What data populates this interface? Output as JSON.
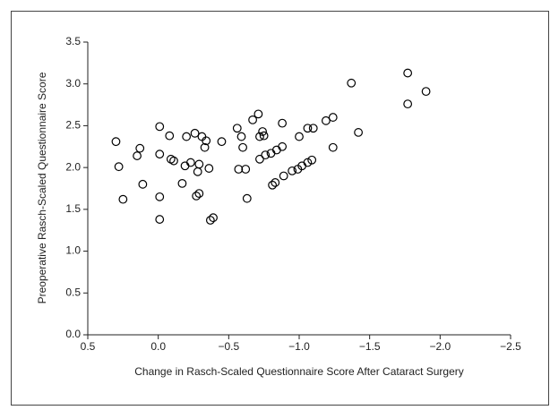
{
  "chart_data": {
    "type": "scatter",
    "xlabel": "Change in Rasch-Scaled Questionnaire Score After Cataract Surgery",
    "ylabel": "Preoperative Rasch-Scaled Questionnaire Score",
    "x": [
      0.3,
      0.28,
      0.25,
      0.13,
      0.15,
      0.11,
      -0.01,
      -0.01,
      -0.01,
      -0.01,
      -0.08,
      -0.09,
      -0.11,
      -0.17,
      -0.2,
      -0.19,
      -0.23,
      -0.26,
      -0.29,
      -0.28,
      -0.29,
      -0.27,
      -0.31,
      -0.33,
      -0.34,
      -0.36,
      -0.37,
      -0.39,
      -0.45,
      -0.56,
      -0.59,
      -0.6,
      -0.57,
      -0.62,
      -0.63,
      -0.67,
      -0.71,
      -0.72,
      -0.74,
      -0.75,
      -0.72,
      -0.76,
      -0.8,
      -0.84,
      -0.88,
      -0.88,
      -0.81,
      -0.83,
      -0.89,
      -0.95,
      -0.99,
      -1.02,
      -1.06,
      -1.09,
      -1.0,
      -1.06,
      -1.1,
      -1.19,
      -1.24,
      -1.24,
      -1.37,
      -1.42,
      -1.77,
      -1.77,
      -1.9
    ],
    "y": [
      2.31,
      2.01,
      1.62,
      2.23,
      2.14,
      1.8,
      2.49,
      2.16,
      1.65,
      1.38,
      2.38,
      2.1,
      2.08,
      1.81,
      2.37,
      2.02,
      2.06,
      2.41,
      2.04,
      1.95,
      1.69,
      1.66,
      2.37,
      2.24,
      2.32,
      1.99,
      1.37,
      1.4,
      2.31,
      2.47,
      2.37,
      2.24,
      1.98,
      1.98,
      1.63,
      2.57,
      2.64,
      2.37,
      2.43,
      2.38,
      2.1,
      2.15,
      2.17,
      2.21,
      2.25,
      2.53,
      1.79,
      1.82,
      1.9,
      1.96,
      1.98,
      2.02,
      2.06,
      2.09,
      2.37,
      2.47,
      2.47,
      2.56,
      2.6,
      2.24,
      3.01,
      2.42,
      3.13,
      2.76,
      2.91
    ],
    "color": "#000000",
    "xlim": [
      0.5,
      -2.5
    ],
    "xticks": [
      0.5,
      {
        "value": 0,
        "label": "0.0"
      },
      {
        "value": -0.5,
        "label": "−0.5"
      },
      {
        "value": -1,
        "label": "−1.0"
      },
      {
        "value": -1.5,
        "label": "−1.5"
      },
      {
        "value": -2,
        "label": "−2.0"
      },
      {
        "value": -2.5,
        "label": "−2.5"
      }
    ],
    "ylim": [
      0,
      3.5
    ],
    "yticks": [
      {
        "value": 0,
        "label": "0.0"
      },
      0.5,
      {
        "value": 1,
        "label": "1.0"
      },
      1.5,
      {
        "value": 2,
        "label": "2.0"
      },
      2.5,
      {
        "value": 3,
        "label": "3.0"
      },
      3.5
    ]
  }
}
